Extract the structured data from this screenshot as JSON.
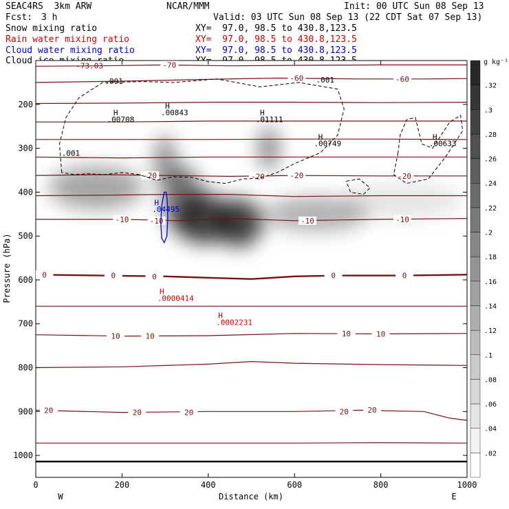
{
  "header": {
    "model": "SEAC4RS  3km ARW",
    "org": "NCAR/MMM",
    "init": "Init: 00 UTC Sun 08 Sep 13",
    "fcst_label": "Fcst:",
    "fcst_value": "3 h",
    "valid": "Valid: 03 UTC Sun 08 Sep 13 (22 CDT Sat 07 Sep 13)",
    "fields": [
      {
        "name": "Snow mixing ratio",
        "xy": "XY=  97.0, 98.5 to 430.8,123.5",
        "color": "#000000"
      },
      {
        "name": "Rain water mixing ratio",
        "xy": "XY=  97.0, 98.5 to 430.8,123.5",
        "color": "#d00000"
      },
      {
        "name": "Cloud water mixing ratio",
        "xy": "XY=  97.0, 98.5 to 430.8,123.5",
        "color": "#0000cc"
      },
      {
        "name": "Cloud ice mixing ratio",
        "xy": "XY=  97.0, 98.5 to 430.8,123.5",
        "color": "#000000"
      }
    ]
  },
  "chart_data": {
    "type": "heatmap",
    "xlabel": "Distance (km)",
    "ylabel": "Pressure (hPa)",
    "xlim": [
      0,
      1000
    ],
    "ylim": [
      1050,
      100
    ],
    "x_ticks": [
      0,
      200,
      400,
      600,
      800,
      1000
    ],
    "y_ticks": [
      200,
      300,
      400,
      500,
      600,
      700,
      800,
      900,
      1000
    ],
    "x_end_labels": {
      "left": "W",
      "right": "E"
    },
    "colorbar": {
      "unit": "g kg⁻¹",
      "ticks": [
        ".02",
        ".04",
        ".06",
        ".08",
        ".1",
        ".12",
        ".14",
        ".16",
        ".18",
        ".2",
        ".22",
        ".24",
        ".26",
        ".28",
        ".3",
        ".32"
      ]
    },
    "snow_blobs": [
      {
        "x": 470,
        "p": 470,
        "sx": 55,
        "sp": 55,
        "a": 0.75
      },
      {
        "x": 390,
        "p": 460,
        "sx": 60,
        "sp": 60,
        "a": 0.7
      },
      {
        "x": 340,
        "p": 420,
        "sx": 45,
        "sp": 80,
        "a": 0.55
      },
      {
        "x": 300,
        "p": 330,
        "sx": 25,
        "sp": 60,
        "a": 0.45
      },
      {
        "x": 540,
        "p": 300,
        "sx": 25,
        "sp": 50,
        "a": 0.45
      },
      {
        "x": 140,
        "p": 390,
        "sx": 110,
        "sp": 50,
        "a": 0.35
      },
      {
        "x": 650,
        "p": 450,
        "sx": 120,
        "sp": 40,
        "a": 0.3
      },
      {
        "x": 850,
        "p": 420,
        "sx": 140,
        "sp": 40,
        "a": 0.1
      }
    ],
    "temperature_contours": [
      {
        "label": "-70",
        "points": [
          [
            0,
            113
          ],
          [
            150,
            112
          ],
          [
            300,
            110
          ],
          [
            450,
            112
          ],
          [
            600,
            111
          ],
          [
            800,
            110
          ],
          [
            1000,
            110
          ]
        ],
        "labels_at": [
          [
            310,
            110
          ]
        ]
      },
      {
        "label": "-60",
        "points": [
          [
            0,
            150
          ],
          [
            200,
            147
          ],
          [
            400,
            143
          ],
          [
            560,
            140
          ],
          [
            750,
            142
          ],
          [
            900,
            142
          ],
          [
            1000,
            141
          ]
        ],
        "labels_at": [
          [
            605,
            140
          ],
          [
            850,
            142
          ]
        ]
      },
      {
        "label": "",
        "points": [
          [
            0,
            198
          ],
          [
            200,
            197
          ],
          [
            400,
            195
          ],
          [
            600,
            195
          ],
          [
            800,
            196
          ],
          [
            1000,
            195
          ]
        ],
        "labels_at": []
      },
      {
        "label": "",
        "points": [
          [
            0,
            240
          ],
          [
            200,
            240
          ],
          [
            400,
            238
          ],
          [
            600,
            238
          ],
          [
            800,
            238
          ],
          [
            1000,
            238
          ]
        ],
        "labels_at": []
      },
      {
        "label": "",
        "points": [
          [
            0,
            280
          ],
          [
            200,
            280
          ],
          [
            400,
            280
          ],
          [
            600,
            279
          ],
          [
            800,
            279
          ],
          [
            1000,
            280
          ]
        ],
        "labels_at": []
      },
      {
        "label": "",
        "points": [
          [
            0,
            320
          ],
          [
            200,
            322
          ],
          [
            400,
            320
          ],
          [
            600,
            320
          ],
          [
            800,
            320
          ],
          [
            1000,
            320
          ]
        ],
        "labels_at": []
      },
      {
        "label": "-20",
        "points": [
          [
            0,
            362
          ],
          [
            150,
            360
          ],
          [
            300,
            362
          ],
          [
            450,
            364
          ],
          [
            600,
            362
          ],
          [
            800,
            363
          ],
          [
            1000,
            363
          ]
        ],
        "labels_at": [
          [
            265,
            362
          ],
          [
            515,
            364
          ],
          [
            605,
            362
          ],
          [
            855,
            363
          ]
        ]
      },
      {
        "label": "",
        "points": [
          [
            0,
            408
          ],
          [
            150,
            407
          ],
          [
            300,
            405
          ],
          [
            450,
            405
          ],
          [
            600,
            410
          ],
          [
            800,
            408
          ],
          [
            1000,
            408
          ]
        ],
        "labels_at": []
      },
      {
        "label": "-10",
        "points": [
          [
            0,
            462
          ],
          [
            200,
            462
          ],
          [
            330,
            465
          ],
          [
            450,
            460
          ],
          [
            600,
            465
          ],
          [
            800,
            462
          ],
          [
            1000,
            460
          ]
        ],
        "labels_at": [
          [
            200,
            462
          ],
          [
            280,
            465
          ],
          [
            630,
            465
          ],
          [
            850,
            462
          ]
        ]
      },
      {
        "label": "0",
        "points": [
          [
            0,
            588
          ],
          [
            150,
            590
          ],
          [
            300,
            592
          ],
          [
            400,
            595
          ],
          [
            500,
            598
          ],
          [
            600,
            592
          ],
          [
            700,
            590
          ],
          [
            850,
            590
          ],
          [
            1000,
            588
          ]
        ],
        "labels_at": [
          [
            20,
            588
          ],
          [
            180,
            590
          ],
          [
            275,
            592
          ],
          [
            690,
            590
          ],
          [
            855,
            590
          ]
        ]
      },
      {
        "label": "",
        "points": [
          [
            0,
            660
          ],
          [
            200,
            660
          ],
          [
            400,
            660
          ],
          [
            600,
            660
          ],
          [
            800,
            660
          ],
          [
            1000,
            660
          ]
        ],
        "labels_at": []
      },
      {
        "label": "10",
        "points": [
          [
            0,
            725
          ],
          [
            200,
            728
          ],
          [
            400,
            727
          ],
          [
            600,
            722
          ],
          [
            800,
            723
          ],
          [
            1000,
            722
          ]
        ],
        "labels_at": [
          [
            185,
            728
          ],
          [
            265,
            728
          ],
          [
            720,
            722
          ],
          [
            800,
            723
          ]
        ]
      },
      {
        "label": "",
        "points": [
          [
            0,
            800
          ],
          [
            200,
            798
          ],
          [
            400,
            792
          ],
          [
            500,
            786
          ],
          [
            600,
            790
          ],
          [
            800,
            793
          ],
          [
            1000,
            795
          ]
        ],
        "labels_at": []
      },
      {
        "label": "20",
        "points": [
          [
            0,
            897
          ],
          [
            200,
            902
          ],
          [
            400,
            900
          ],
          [
            600,
            900
          ],
          [
            750,
            897
          ],
          [
            900,
            900
          ],
          [
            960,
            915
          ],
          [
            1000,
            920
          ]
        ],
        "labels_at": [
          [
            30,
            897
          ],
          [
            235,
            902
          ],
          [
            355,
            902
          ],
          [
            715,
            900
          ],
          [
            780,
            896
          ]
        ]
      },
      {
        "label": "",
        "points": [
          [
            0,
            972
          ],
          [
            200,
            972
          ],
          [
            400,
            972
          ],
          [
            600,
            972
          ],
          [
            800,
            971
          ],
          [
            1000,
            972
          ]
        ],
        "labels_at": []
      }
    ],
    "cloud_ice_outlines": [
      {
        "points": [
          [
            60,
            355
          ],
          [
            55,
            290
          ],
          [
            70,
            230
          ],
          [
            100,
            185
          ],
          [
            155,
            150
          ],
          [
            250,
            148
          ],
          [
            320,
            150
          ],
          [
            420,
            142
          ],
          [
            520,
            160
          ],
          [
            610,
            150
          ],
          [
            700,
            165
          ],
          [
            715,
            210
          ],
          [
            700,
            270
          ],
          [
            660,
            310
          ],
          [
            600,
            335
          ],
          [
            560,
            355
          ],
          [
            520,
            368
          ],
          [
            480,
            370
          ],
          [
            440,
            380
          ],
          [
            400,
            376
          ],
          [
            360,
            366
          ],
          [
            320,
            365
          ],
          [
            280,
            373
          ],
          [
            240,
            360
          ],
          [
            200,
            355
          ],
          [
            160,
            360
          ],
          [
            120,
            358
          ],
          [
            90,
            360
          ],
          [
            60,
            355
          ]
        ]
      },
      {
        "points": [
          [
            840,
            310
          ],
          [
            830,
            360
          ],
          [
            860,
            380
          ],
          [
            910,
            370
          ],
          [
            950,
            320
          ],
          [
            990,
            260
          ],
          [
            985,
            225
          ],
          [
            960,
            240
          ],
          [
            940,
            270
          ],
          [
            920,
            300
          ],
          [
            895,
            290
          ],
          [
            880,
            230
          ],
          [
            860,
            235
          ],
          [
            845,
            270
          ],
          [
            840,
            310
          ]
        ]
      },
      {
        "points": [
          [
            720,
            375
          ],
          [
            750,
            370
          ],
          [
            775,
            390
          ],
          [
            760,
            405
          ],
          [
            730,
            400
          ],
          [
            720,
            375
          ]
        ]
      }
    ],
    "cloud_water_outline": {
      "points": [
        [
          298,
          400
        ],
        [
          292,
          430
        ],
        [
          290,
          470
        ],
        [
          292,
          505
        ],
        [
          298,
          515
        ],
        [
          304,
          500
        ],
        [
          306,
          460
        ],
        [
          305,
          420
        ],
        [
          302,
          400
        ],
        [
          298,
          400
        ]
      ]
    },
    "annotations": [
      {
        "text": "-73.03",
        "x": 93,
        "p": 118,
        "color": "#7a1010"
      },
      {
        "text": ".001",
        "x": 160,
        "p": 153,
        "color": "#000000"
      },
      {
        "text": ".001",
        "x": 650,
        "p": 150,
        "color": "#000000"
      },
      {
        "text": ".001",
        "x": 60,
        "p": 317,
        "color": "#000000"
      },
      {
        "text": "H",
        "x": 180,
        "p": 225,
        "color": "#000000"
      },
      {
        "text": ".00708",
        "x": 165,
        "p": 240,
        "color": "#000000"
      },
      {
        "text": "H",
        "x": 300,
        "p": 210,
        "color": "#000000"
      },
      {
        "text": ".00843",
        "x": 290,
        "p": 225,
        "color": "#000000"
      },
      {
        "text": "H",
        "x": 520,
        "p": 225,
        "color": "#000000"
      },
      {
        "text": ".01111",
        "x": 510,
        "p": 240,
        "color": "#000000"
      },
      {
        "text": "H",
        "x": 655,
        "p": 280,
        "color": "#000000"
      },
      {
        "text": ".00749",
        "x": 645,
        "p": 295,
        "color": "#000000"
      },
      {
        "text": "H",
        "x": 920,
        "p": 280,
        "color": "#000000"
      },
      {
        "text": ".00633",
        "x": 912,
        "p": 295,
        "color": "#000000"
      },
      {
        "text": "H",
        "x": 275,
        "p": 430,
        "color": "#0000cc"
      },
      {
        "text": ".04495",
        "x": 270,
        "p": 445,
        "color": "#0000cc"
      },
      {
        "text": "H",
        "x": 287,
        "p": 632,
        "color": "#d00000"
      },
      {
        "text": ".0000414",
        "x": 282,
        "p": 648,
        "color": "#d00000"
      },
      {
        "text": "H",
        "x": 423,
        "p": 687,
        "color": "#d00000"
      },
      {
        "text": ".0002231",
        "x": 418,
        "p": 703,
        "color": "#d00000"
      }
    ]
  }
}
